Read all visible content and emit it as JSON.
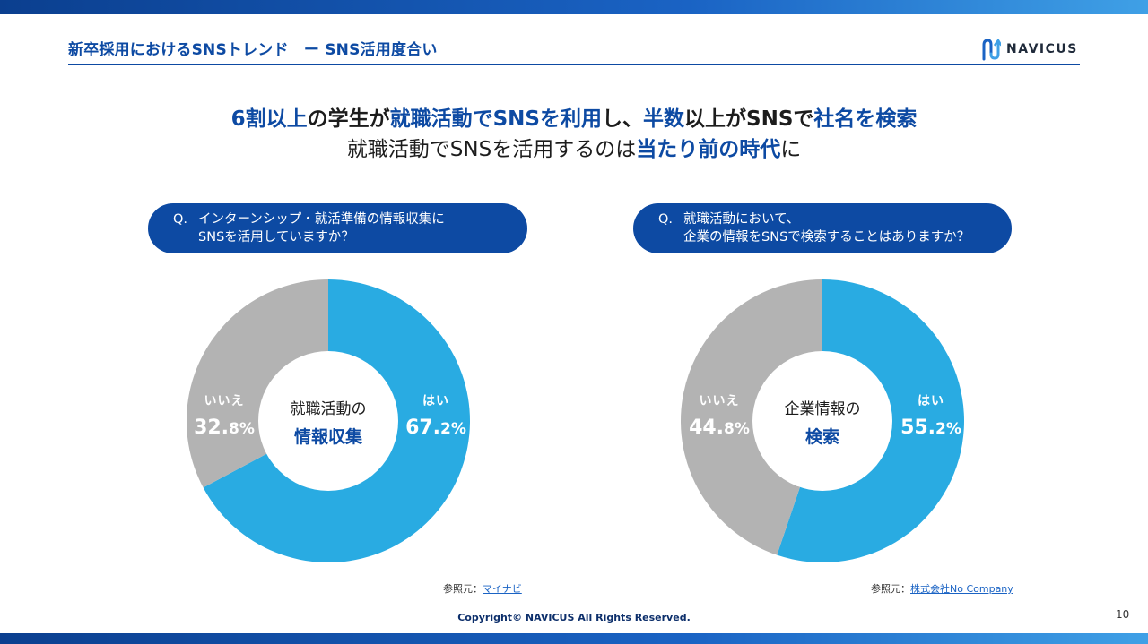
{
  "header": {
    "title": "新卒採用におけるSNSトレンド　ー SNS活用度合い",
    "logo_text": "NAVICUS"
  },
  "headline": {
    "line1": [
      {
        "text": "6割以上",
        "em": true
      },
      {
        "text": "の学生が",
        "em": false
      },
      {
        "text": "就職活動でSNSを利用",
        "em": true
      },
      {
        "text": "し、",
        "em": false
      },
      {
        "text": "半数",
        "em": true
      },
      {
        "text": "以上がSNSで",
        "em": false
      },
      {
        "text": "社名を検索",
        "em": true
      }
    ],
    "line2": [
      {
        "text": "就職活動でSNSを活用するのは",
        "em": false
      },
      {
        "text": "当たり前の時代",
        "em": true
      },
      {
        "text": "に",
        "em": false
      }
    ]
  },
  "left": {
    "question_prefix": "Q.",
    "question_line1": "インターンシップ・就活準備の情報収集に",
    "question_line2": "SNSを活用していますか？",
    "center_top": "就職活動の",
    "center_bottom": "情報収集",
    "yes_label": "はい",
    "yes_value_int": "67.",
    "yes_value_dec": "2%",
    "no_label": "いいえ",
    "no_value_int": "32.",
    "no_value_dec": "8%",
    "source_prefix": "参照元：",
    "source_link": "マイナビ"
  },
  "right": {
    "question_prefix": "Q.",
    "question_line1": "就職活動において、",
    "question_line2": "企業の情報をSNSで検索することはありますか？",
    "center_top": "企業情報の",
    "center_bottom": "検索",
    "yes_label": "はい",
    "yes_value_int": "55.",
    "yes_value_dec": "2%",
    "no_label": "いいえ",
    "no_value_int": "44.",
    "no_value_dec": "8%",
    "source_prefix": "参照元：",
    "source_link": "株式会社No Company"
  },
  "chart_data": [
    {
      "type": "pie",
      "title": "インターンシップ・就活準備の情報収集にSNSを活用していますか？",
      "categories": [
        "はい",
        "いいえ"
      ],
      "values": [
        67.2,
        32.8
      ]
    },
    {
      "type": "pie",
      "title": "企業の情報をSNSで検索することはありますか？",
      "categories": [
        "はい",
        "いいえ"
      ],
      "values": [
        55.2,
        44.8
      ]
    }
  ],
  "colors": {
    "yes": "#29abe2",
    "no": "#b3b3b3",
    "brand": "#0d4aa3"
  },
  "footer": {
    "copyright": "Copyright© NAVICUS All Rights Reserved.",
    "page_number": "10"
  }
}
